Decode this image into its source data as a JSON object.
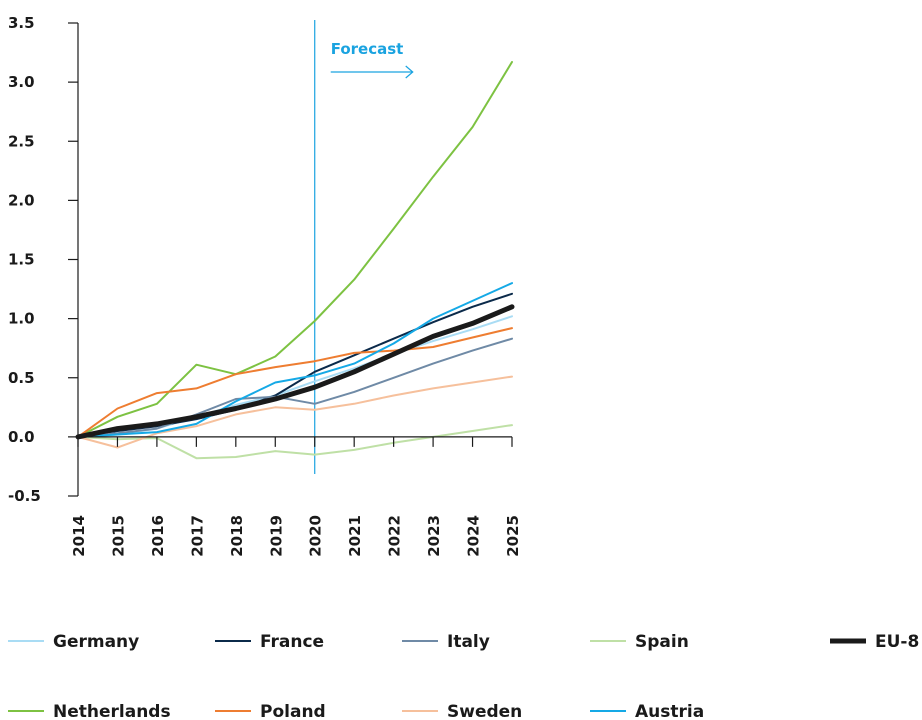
{
  "chart_data": {
    "type": "line",
    "title": "",
    "xlabel": "",
    "ylabel": "",
    "x": [
      2014,
      2015,
      2016,
      2017,
      2018,
      2019,
      2020,
      2021,
      2022,
      2023,
      2024,
      2025
    ],
    "x_tick_labels": [
      "2014",
      "2015",
      "2016",
      "2017",
      "2018",
      "2019",
      "2020",
      "2021",
      "2022",
      "2023",
      "2024",
      "2025"
    ],
    "ylim": [
      -0.5,
      3.5
    ],
    "y_ticks": [
      -0.5,
      0.0,
      0.5,
      1.0,
      1.5,
      2.0,
      2.5,
      3.0,
      3.5
    ],
    "y_tick_labels": [
      "-0.5",
      "0.0",
      "0.5",
      "1.0",
      "1.5",
      "2.0",
      "2.5",
      "3.0",
      "3.5"
    ],
    "grid": false,
    "legend_position": "bottom",
    "annotations": [
      {
        "text": "Forecast",
        "x": 2020,
        "color": "#1aa3e0"
      }
    ],
    "series": [
      {
        "name": "Germany",
        "color": "#a9dcf4",
        "width": 2,
        "values": [
          0.0,
          0.02,
          0.07,
          0.17,
          0.27,
          0.35,
          0.47,
          0.58,
          0.7,
          0.81,
          0.91,
          1.02
        ]
      },
      {
        "name": "France",
        "color": "#0b2a4a",
        "width": 2,
        "values": [
          0.0,
          0.05,
          0.09,
          0.15,
          0.23,
          0.35,
          0.55,
          0.69,
          0.83,
          0.97,
          1.1,
          1.21
        ]
      },
      {
        "name": "Italy",
        "color": "#6f8aa6",
        "width": 2,
        "values": [
          0.0,
          0.03,
          0.07,
          0.19,
          0.32,
          0.34,
          0.28,
          0.38,
          0.5,
          0.62,
          0.73,
          0.83
        ]
      },
      {
        "name": "Spain",
        "color": "#bfe0a6",
        "width": 2,
        "values": [
          0.0,
          -0.02,
          -0.01,
          -0.18,
          -0.17,
          -0.12,
          -0.15,
          -0.11,
          -0.05,
          0.0,
          0.05,
          0.1
        ]
      },
      {
        "name": "EU-8",
        "color": "#1a1a1a",
        "width": 5,
        "values": [
          0.0,
          0.07,
          0.11,
          0.17,
          0.24,
          0.32,
          0.42,
          0.55,
          0.7,
          0.85,
          0.96,
          1.1
        ]
      },
      {
        "name": "Netherlands",
        "color": "#7dc242",
        "width": 2,
        "values": [
          0.0,
          0.17,
          0.28,
          0.61,
          0.53,
          0.68,
          0.98,
          1.33,
          1.76,
          2.2,
          2.62,
          3.17
        ]
      },
      {
        "name": "Poland",
        "color": "#ee7d31",
        "width": 2,
        "values": [
          0.0,
          0.24,
          0.37,
          0.41,
          0.53,
          0.59,
          0.64,
          0.71,
          0.73,
          0.76,
          0.84,
          0.92
        ]
      },
      {
        "name": "Sweden",
        "color": "#f6c09c",
        "width": 2,
        "values": [
          0.0,
          -0.09,
          0.03,
          0.09,
          0.19,
          0.25,
          0.23,
          0.28,
          0.35,
          0.41,
          0.46,
          0.51
        ]
      },
      {
        "name": "Austria",
        "color": "#15a9e6",
        "width": 2,
        "values": [
          0.0,
          0.02,
          0.04,
          0.11,
          0.3,
          0.46,
          0.52,
          0.62,
          0.79,
          1.0,
          1.15,
          1.3
        ]
      }
    ],
    "legend_order": [
      "Germany",
      "France",
      "Italy",
      "Spain",
      "EU-8",
      "Netherlands",
      "Poland",
      "Sweden",
      "Austria"
    ]
  }
}
